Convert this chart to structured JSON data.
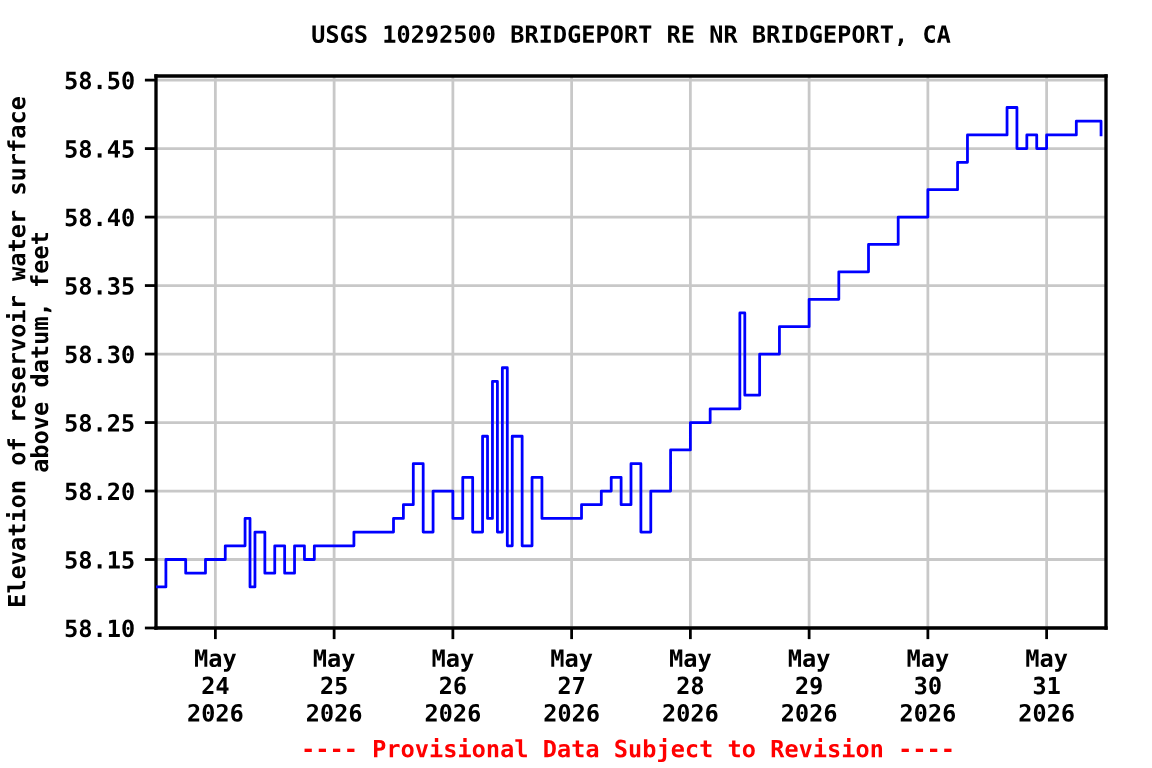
{
  "chart_data": {
    "type": "step",
    "title": "USGS 10292500 BRIDGEPORT RE NR BRIDGEPORT, CA",
    "ylabel": "Elevation of reservoir water surface\nabove datum, feet",
    "annotations": [
      "---- Provisional Data Subject to Revision ----"
    ],
    "x": [
      "2026-05-23T12:00",
      "2026-05-23T14:00",
      "2026-05-23T18:00",
      "2026-05-23T22:00",
      "2026-05-24T00:00",
      "2026-05-24T02:00",
      "2026-05-24T04:00",
      "2026-05-24T06:00",
      "2026-05-24T07:00",
      "2026-05-24T08:00",
      "2026-05-24T10:00",
      "2026-05-24T12:00",
      "2026-05-24T14:00",
      "2026-05-24T16:00",
      "2026-05-24T18:00",
      "2026-05-24T20:00",
      "2026-05-25T00:00",
      "2026-05-25T04:00",
      "2026-05-25T08:00",
      "2026-05-25T12:00",
      "2026-05-25T14:00",
      "2026-05-25T16:00",
      "2026-05-25T18:00",
      "2026-05-25T20:00",
      "2026-05-26T00:00",
      "2026-05-26T02:00",
      "2026-05-26T04:00",
      "2026-05-26T06:00",
      "2026-05-26T07:00",
      "2026-05-26T08:00",
      "2026-05-26T09:00",
      "2026-05-26T10:00",
      "2026-05-26T11:00",
      "2026-05-26T12:00",
      "2026-05-26T14:00",
      "2026-05-26T16:00",
      "2026-05-26T18:00",
      "2026-05-26T22:00",
      "2026-05-27T02:00",
      "2026-05-27T06:00",
      "2026-05-27T08:00",
      "2026-05-27T10:00",
      "2026-05-27T12:00",
      "2026-05-27T14:00",
      "2026-05-27T16:00",
      "2026-05-27T20:00",
      "2026-05-28T00:00",
      "2026-05-28T04:00",
      "2026-05-28T08:00",
      "2026-05-28T10:00",
      "2026-05-28T11:00",
      "2026-05-28T14:00",
      "2026-05-28T18:00",
      "2026-05-29T00:00",
      "2026-05-29T06:00",
      "2026-05-29T12:00",
      "2026-05-29T18:00",
      "2026-05-30T00:00",
      "2026-05-30T06:00",
      "2026-05-30T08:00",
      "2026-05-30T12:00",
      "2026-05-30T16:00",
      "2026-05-30T18:00",
      "2026-05-30T20:00",
      "2026-05-30T22:00",
      "2026-05-31T00:00",
      "2026-05-31T04:00",
      "2026-05-31T06:00",
      "2026-05-31T10:00",
      "2026-05-31T11:00"
    ],
    "series": [
      {
        "color": "#0000ff",
        "values": [
          58.13,
          58.15,
          58.14,
          58.15,
          58.15,
          58.16,
          58.16,
          58.18,
          58.13,
          58.17,
          58.14,
          58.16,
          58.14,
          58.16,
          58.15,
          58.16,
          58.16,
          58.17,
          58.17,
          58.18,
          58.19,
          58.22,
          58.17,
          58.2,
          58.18,
          58.21,
          58.17,
          58.24,
          58.18,
          58.28,
          58.17,
          58.29,
          58.16,
          58.24,
          58.16,
          58.21,
          58.18,
          58.18,
          58.19,
          58.2,
          58.21,
          58.19,
          58.22,
          58.17,
          58.2,
          58.23,
          58.25,
          58.26,
          58.26,
          58.33,
          58.27,
          58.3,
          58.32,
          58.34,
          58.36,
          58.38,
          58.4,
          58.42,
          58.44,
          58.46,
          58.46,
          58.48,
          58.45,
          58.46,
          58.45,
          58.46,
          58.46,
          58.47,
          58.47,
          58.46
        ]
      }
    ],
    "xlim": [
      "2026-05-23T12:00",
      "2026-05-31T12:00"
    ],
    "xticks": [
      {
        "value": "2026-05-24",
        "label": "May\n24\n2026"
      },
      {
        "value": "2026-05-25",
        "label": "May\n25\n2026"
      },
      {
        "value": "2026-05-26",
        "label": "May\n26\n2026"
      },
      {
        "value": "2026-05-27",
        "label": "May\n27\n2026"
      },
      {
        "value": "2026-05-28",
        "label": "May\n28\n2026"
      },
      {
        "value": "2026-05-29",
        "label": "May\n29\n2026"
      },
      {
        "value": "2026-05-30",
        "label": "May\n30\n2026"
      },
      {
        "value": "2026-05-31",
        "label": "May\n31\n2026"
      }
    ],
    "ylim": [
      58.1,
      58.503
    ],
    "yticks": [
      {
        "value": 58.1,
        "label": "58.10"
      },
      {
        "value": 58.15,
        "label": "58.15"
      },
      {
        "value": 58.2,
        "label": "58.20"
      },
      {
        "value": 58.25,
        "label": "58.25"
      },
      {
        "value": 58.3,
        "label": "58.30"
      },
      {
        "value": 58.35,
        "label": "58.35"
      },
      {
        "value": 58.4,
        "label": "58.40"
      },
      {
        "value": 58.45,
        "label": "58.45"
      },
      {
        "value": 58.5,
        "label": "58.50"
      }
    ],
    "grid": true
  }
}
